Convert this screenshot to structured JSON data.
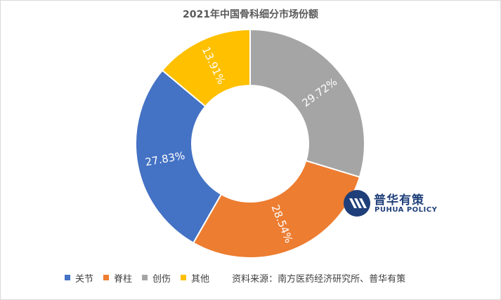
{
  "chart_data": {
    "type": "pie",
    "variant": "doughnut",
    "title": "2021年中国骨科细分市场份额",
    "categories": [
      "关节",
      "脊柱",
      "创伤",
      "其他"
    ],
    "values": [
      27.83,
      28.54,
      29.72,
      13.91
    ],
    "labels": [
      "27.83%",
      "28.54%",
      "29.72%",
      "13.91%"
    ],
    "colors": [
      "#4472c4",
      "#ed7d31",
      "#a5a5a5",
      "#ffc000"
    ],
    "legend_position": "bottom",
    "source": "资料来源：南方医药经济研究所、普华有策"
  },
  "logo": {
    "name_cn": "普华有策",
    "name_en": "PUHUA POLICY",
    "brand_color": "#1f3f7a"
  }
}
